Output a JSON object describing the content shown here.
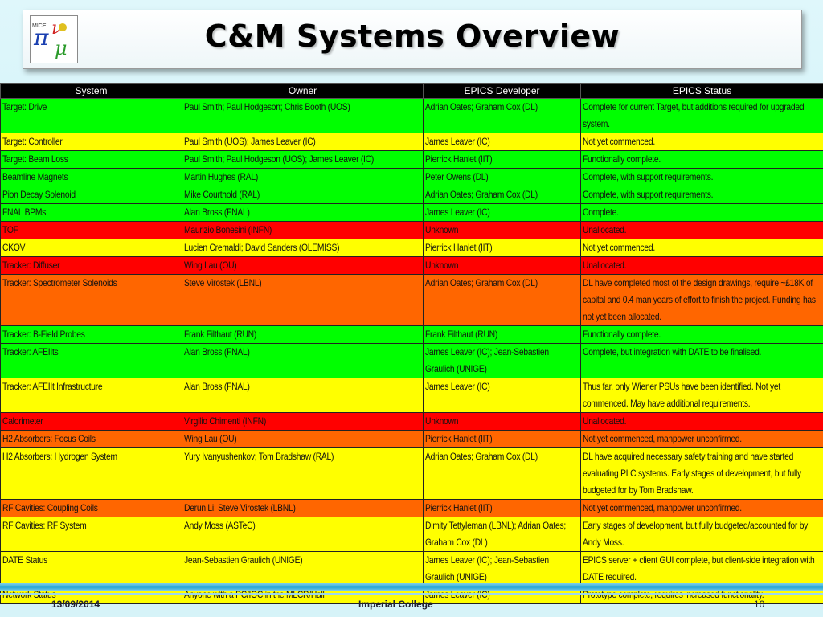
{
  "slide": {
    "title": "C&M Systems Overview",
    "logo_text": "MICE",
    "footer_date": "13/09/2014",
    "footer_org": "Imperial College",
    "page_number": "10"
  },
  "colors": {
    "green": "#00ff00",
    "yellow": "#ffff00",
    "orange": "#ff6600",
    "red": "#ff0000",
    "header": "#000000"
  },
  "table": {
    "headers": [
      "System",
      "Owner",
      "EPICS Developer",
      "EPICS Status"
    ],
    "rows": [
      {
        "status": "green",
        "h": 42,
        "cells": [
          "Target: Drive",
          "Paul Smith; Paul Hodgeson; Chris Booth (UOS)",
          "Adrian Oates; Graham Cox (DL)",
          "Complete for current Target, but additions required for upgraded system."
        ]
      },
      {
        "status": "yellow",
        "h": 21,
        "cells": [
          "Target: Controller",
          "Paul Smith (UOS); James Leaver (IC)",
          "James Leaver (IC)",
          "Not yet commenced."
        ]
      },
      {
        "status": "green",
        "h": 21,
        "cells": [
          "Target: Beam Loss",
          "Paul Smith; Paul Hodgeson (UOS); James Leaver (IC)",
          "Pierrick Hanlet (IIT)",
          "Functionally complete."
        ]
      },
      {
        "status": "green",
        "h": 21,
        "cells": [
          "Beamline Magnets",
          "Martin Hughes (RAL)",
          "Peter Owens (DL)",
          "Complete, with support requirements."
        ]
      },
      {
        "status": "green",
        "h": 21,
        "cells": [
          "Pion Decay Solenoid",
          "Mike Courthold (RAL)",
          "Adrian Oates; Graham Cox (DL)",
          "Complete, with support requirements."
        ]
      },
      {
        "status": "green",
        "h": 21,
        "cells": [
          "FNAL BPMs",
          "Alan Bross (FNAL)",
          "James Leaver (IC)",
          "Complete."
        ]
      },
      {
        "status": "red",
        "h": 21,
        "cells": [
          "TOF",
          "Maurizio Bonesini (INFN)",
          "Unknown",
          "Unallocated."
        ]
      },
      {
        "status": "yellow",
        "h": 21,
        "cells": [
          "CKOV",
          "Lucien Cremaldi; David Sanders (OLEMISS)",
          "Pierrick Hanlet (IIT)",
          "Not yet commenced."
        ]
      },
      {
        "status": "red",
        "h": 21,
        "cells": [
          "Tracker: Diffuser",
          "Wing Lau (OU)",
          "Unknown",
          "Unallocated."
        ]
      },
      {
        "status": "orange",
        "h": 63,
        "cells": [
          "Tracker: Spectrometer Solenoids",
          "Steve Virostek (LBNL)",
          "Adrian Oates; Graham Cox (DL)",
          "DL have completed most of the design drawings, require ~£18K of capital and 0.4 man years of effort to finish the project. Funding has not yet been allocated."
        ]
      },
      {
        "status": "green",
        "h": 21,
        "cells": [
          "Tracker: B-Field Probes",
          "Frank Filthaut (RUN)",
          "Frank Filthaut (RUN)",
          "Functionally complete."
        ]
      },
      {
        "status": "green",
        "h": 42,
        "cells": [
          "Tracker: AFEIIts",
          "Alan Bross (FNAL)",
          "James Leaver (IC); Jean-Sebastien Graulich (UNIGE)",
          "Complete, but integration with DATE to be finalised."
        ]
      },
      {
        "status": "yellow",
        "h": 42,
        "cells": [
          "Tracker: AFEIIt Infrastructure",
          "Alan Bross (FNAL)",
          "James Leaver (IC)",
          "Thus far, only Wiener PSUs have been identified. Not yet commenced. May have additional requirements."
        ]
      },
      {
        "status": "red",
        "h": 21,
        "cells": [
          "Calorimeter",
          "Virgilio Chimenti (INFN)",
          "Unknown",
          "Unallocated."
        ]
      },
      {
        "status": "orange",
        "h": 21,
        "cells": [
          "H2 Absorbers: Focus Coils",
          "Wing Lau (OU)",
          "Pierrick Hanlet (IIT)",
          "Not yet commenced, manpower unconfirmed."
        ]
      },
      {
        "status": "yellow",
        "h": 63,
        "cells": [
          "H2 Absorbers: Hydrogen System",
          "Yury Ivanyushenkov; Tom Bradshaw (RAL)",
          "Adrian Oates; Graham Cox (DL)",
          "DL have acquired necessary safety training and have started evaluating PLC systems. Early stages of development, but fully budgeted for by Tom Bradshaw."
        ]
      },
      {
        "status": "orange",
        "h": 21,
        "cells": [
          "RF Cavities: Coupling Coils",
          "Derun Li; Steve Virostek (LBNL)",
          "Pierrick Hanlet (IIT)",
          "Not yet commenced, manpower unconfirmed."
        ]
      },
      {
        "status": "yellow",
        "h": 42,
        "cells": [
          "RF Cavities: RF System",
          "Andy Moss (ASTeC)",
          "Dimity Tettyleman (LBNL); Adrian Oates; Graham Cox (DL)",
          "Early stages of development, but fully budgeted/accounted for by Andy Moss."
        ]
      },
      {
        "status": "yellow",
        "h": 42,
        "cells": [
          "DATE Status",
          "Jean-Sebastien Graulich (UNIGE)",
          "James Leaver (IC); Jean-Sebastien Graulich (UNIGE)",
          "EPICS server + client GUI complete, but client-side integration with DATE required."
        ]
      },
      {
        "status": "yellow",
        "h": 21,
        "cells": [
          "Network Status",
          "Anyone with a PC/IOC in the MLCR/Hall",
          "James Leaver (IC)",
          "Prototype complete, requires increased functionality."
        ]
      }
    ]
  }
}
